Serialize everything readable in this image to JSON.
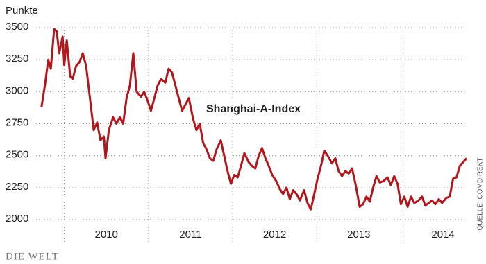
{
  "chart_data": {
    "type": "line",
    "y_label": "Punkte",
    "annotation": "Shanghai-A-Index",
    "source": "QUELLE: COMDIREKT",
    "credit": "DIE WELT",
    "xlim": [
      2009.69,
      2014.78
    ],
    "xticks": [
      {
        "value": 2010,
        "label": "2010"
      },
      {
        "value": 2011,
        "label": "2011"
      },
      {
        "value": 2012,
        "label": "2012"
      },
      {
        "value": 2013,
        "label": "2013"
      },
      {
        "value": 2014,
        "label": "2014"
      }
    ],
    "ylim": [
      2000,
      3500
    ],
    "yticks": [
      2000,
      2250,
      2500,
      2750,
      3000,
      3250,
      3500
    ],
    "grid": true,
    "x": [
      2009.73,
      2009.77,
      2009.81,
      2009.84,
      2009.88,
      2009.91,
      2009.94,
      2009.98,
      2010.0,
      2010.03,
      2010.07,
      2010.1,
      2010.14,
      2010.18,
      2010.22,
      2010.26,
      2010.3,
      2010.35,
      2010.39,
      2010.43,
      2010.47,
      2010.49,
      2010.53,
      2010.58,
      2010.62,
      2010.66,
      2010.7,
      2010.74,
      2010.78,
      2010.82,
      2010.86,
      2010.91,
      2010.95,
      2010.99,
      2011.03,
      2011.07,
      2011.11,
      2011.15,
      2011.2,
      2011.24,
      2011.28,
      2011.32,
      2011.36,
      2011.4,
      2011.44,
      2011.48,
      2011.53,
      2011.57,
      2011.61,
      2011.65,
      2011.69,
      2011.73,
      2011.77,
      2011.81,
      2011.86,
      2011.9,
      2011.94,
      2011.98,
      2012.02,
      2012.06,
      2012.1,
      2012.14,
      2012.19,
      2012.23,
      2012.27,
      2012.31,
      2012.35,
      2012.39,
      2012.43,
      2012.47,
      2012.52,
      2012.56,
      2012.6,
      2012.64,
      2012.68,
      2012.72,
      2012.76,
      2012.8,
      2012.85,
      2012.89,
      2012.93,
      2012.97,
      2013.01,
      2013.05,
      2013.09,
      2013.13,
      2013.18,
      2013.22,
      2013.26,
      2013.3,
      2013.34,
      2013.38,
      2013.42,
      2013.46,
      2013.51,
      2013.55,
      2013.59,
      2013.63,
      2013.67,
      2013.71,
      2013.75,
      2013.79,
      2013.84,
      2013.88,
      2013.92,
      2013.96,
      2014.0,
      2014.04,
      2014.08,
      2014.12,
      2014.16,
      2014.21,
      2014.25,
      2014.29,
      2014.33,
      2014.37,
      2014.41,
      2014.45,
      2014.49,
      2014.54,
      2014.58,
      2014.62,
      2014.66,
      2014.7,
      2014.74,
      2014.78
    ],
    "series": [
      {
        "name": "Shanghai-A-Index",
        "color": "#b5161b",
        "values": [
          2880,
          3050,
          3250,
          3180,
          3490,
          3470,
          3300,
          3430,
          3210,
          3400,
          3120,
          3100,
          3200,
          3230,
          3300,
          3200,
          2980,
          2700,
          2760,
          2620,
          2650,
          2480,
          2700,
          2800,
          2750,
          2800,
          2750,
          2950,
          3050,
          3300,
          3000,
          2960,
          3000,
          2930,
          2850,
          2950,
          3050,
          3100,
          3070,
          3180,
          3150,
          3050,
          2950,
          2850,
          2900,
          2950,
          2790,
          2700,
          2750,
          2600,
          2550,
          2480,
          2460,
          2550,
          2620,
          2500,
          2380,
          2280,
          2350,
          2330,
          2420,
          2520,
          2450,
          2420,
          2400,
          2500,
          2560,
          2480,
          2420,
          2350,
          2300,
          2240,
          2200,
          2250,
          2160,
          2230,
          2200,
          2150,
          2230,
          2130,
          2080,
          2200,
          2320,
          2420,
          2540,
          2500,
          2440,
          2480,
          2380,
          2340,
          2380,
          2360,
          2400,
          2280,
          2100,
          2120,
          2180,
          2140,
          2250,
          2340,
          2290,
          2300,
          2330,
          2270,
          2340,
          2280,
          2120,
          2180,
          2100,
          2180,
          2130,
          2150,
          2180,
          2110,
          2130,
          2150,
          2120,
          2160,
          2130,
          2170,
          2180,
          2320,
          2330,
          2420,
          2450,
          2480
        ]
      }
    ]
  }
}
